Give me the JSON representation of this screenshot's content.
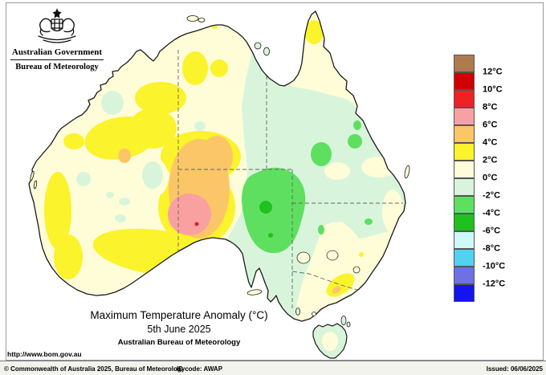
{
  "header": {
    "government": "Australian Government",
    "bureau": "Bureau of Meteorology"
  },
  "legend": {
    "labels": [
      "12°C",
      "10°C",
      "8°C",
      "6°C",
      "4°C",
      "2°C",
      "0°C",
      "-2°C",
      "-4°C",
      "-6°C",
      "-8°C",
      "-10°C",
      "-12°C"
    ],
    "colors": [
      "#AE7B4E",
      "#D10000",
      "#EE2222",
      "#F9A1A1",
      "#FBC667",
      "#FBF32B",
      "#FFFDD8",
      "#D8F5DC",
      "#5FDF60",
      "#1FC11F",
      "#CEF8F8",
      "#50D2F2",
      "#7070E2",
      "#1414EE"
    ]
  },
  "caption": {
    "title": "Maximum Temperature Anomaly (°C)",
    "date": "5th June 2025",
    "org": "Australian Bureau of Meteorology"
  },
  "map": {
    "url_label": "http://www.bom.gov.au",
    "colors": {
      "ocean": "#FFFFFF",
      "coast": "#1A1A1A",
      "border_dash": "#666666",
      "cream": "#FFFDD8",
      "yellow": "#FBF32B",
      "orange": "#FBC667",
      "pink": "#F9A1A1",
      "red": "#D82222",
      "mint": "#D8F5DC",
      "light_green": "#5FDF60",
      "green": "#1FC11F"
    }
  },
  "footer": {
    "copyright": "© Commonwealth of Australia 2025, Bureau of Meteorology",
    "id_code": "ID code: AWAP",
    "issued": "Issued: 06/06/2025"
  },
  "map_data": {
    "type": "choropleth-map",
    "region": "Australia",
    "variable": "Maximum Temperature Anomaly (°C)",
    "date": "5th June 2025",
    "scale_degC": [
      12,
      10,
      8,
      6,
      4,
      2,
      0,
      -2,
      -4,
      -6,
      -8,
      -10,
      -12
    ],
    "features": [
      {
        "area": "Far-west South Australia near the Great Australian Bight",
        "anomaly_degC": "+6 to +8"
      },
      {
        "area": "Central Australia around WA/SA/NT border corner",
        "anomaly_degC": "+4 to +6"
      },
      {
        "area": "Much of interior Western australia and Northern Territory",
        "anomaly_degC": "+2 to +4"
      },
      {
        "area": "Coastal WA, Top End and Cape York base",
        "anomaly_degC": "0 to +2"
      },
      {
        "area": "Most of Queensland, western NSW and eastern SA",
        "anomaly_degC": "-2 to 0"
      },
      {
        "area": "NE South Australia / SW Queensland core",
        "anomaly_degC": "-4 to -2"
      },
      {
        "area": "Small spots NE South Australia",
        "anomaly_degC": "-6 to -4"
      },
      {
        "area": "NE Victoria hills",
        "anomaly_degC": "+2 to +6"
      },
      {
        "area": "Victoria, southern NSW and central Tasmania",
        "anomaly_degC": "0 to +2"
      }
    ]
  }
}
